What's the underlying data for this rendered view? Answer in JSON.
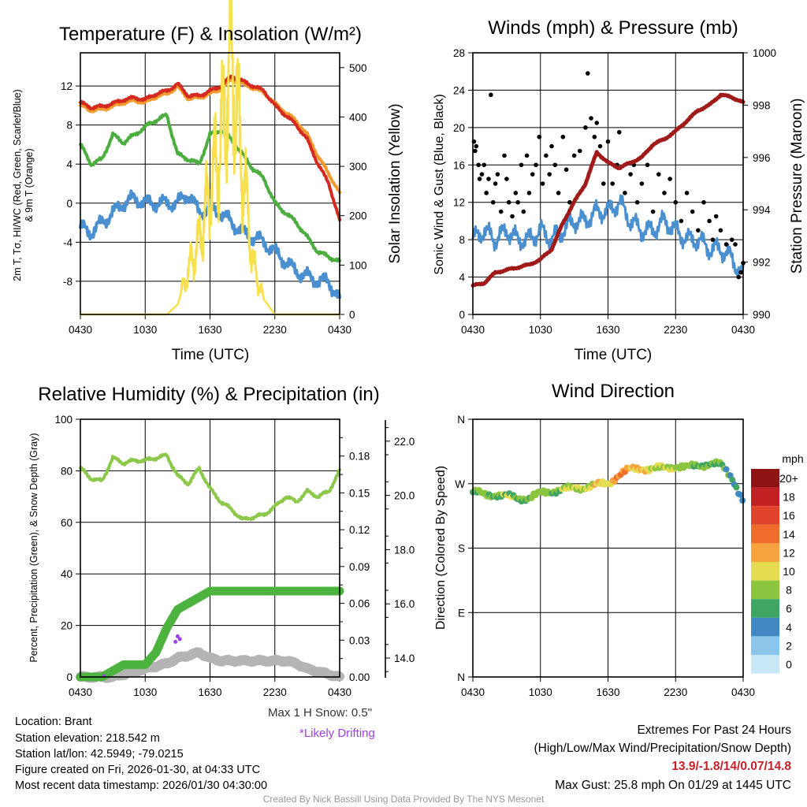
{
  "titles": {
    "temp": "Temperature (F) & Insolation (W/m²)",
    "wind": "Winds (mph) & Pressure (mb)",
    "rh": "Relative Humidity (%) & Precipitation (in)",
    "dir": "Wind Direction"
  },
  "axis_labels": {
    "temp_left_1": "2m T, Tσ, HI/WC (Red, Green, Scarlet/Blue)",
    "temp_left_2": "& 9m T (Orange)",
    "temp_right": "Solar Insolation (Yellow)",
    "temp_x": "Time (UTC)",
    "wind_left": "Sonic Wind & Gust (Blue, Black)",
    "wind_right": "Station Pressure (Maroon)",
    "wind_x": "Time (UTC)",
    "rh_left": "Percent, Precipitation (Green), & Snow Depth (Gray)",
    "dir_left": "Direction (Colored By Speed)"
  },
  "x_ticks": [
    "0430",
    "1030",
    "1630",
    "2230",
    "0430"
  ],
  "colors": {
    "red": "#d42a20",
    "orange": "#f39a2e",
    "green": "#4cae3e",
    "blue": "#4a8fcf",
    "yellow": "#f8e04c",
    "black": "#000000",
    "maroon": "#a01a1a",
    "rh": "#8cc84a",
    "precip": "#4cb43e",
    "snow": "#b4b4b4",
    "drift": "#a040e8"
  },
  "chart_data": [
    {
      "type": "line",
      "title": "Temperature (F) & Insolation (W/m²)",
      "xlabel": "Time (UTC)",
      "x_hours_from_0430": "0..24 hourly",
      "ylim_left": [
        -11.4,
        15.4
      ],
      "yticks_left": [
        12,
        8,
        4,
        0,
        -4,
        -8
      ],
      "ylim_right": [
        0,
        530
      ],
      "yticks_right": [
        500,
        400,
        300,
        200,
        100,
        0
      ],
      "series": [
        {
          "name": "2m T (Red)",
          "color": "red",
          "values": [
            10.3,
            9.8,
            9.9,
            10.2,
            10.6,
            10.8,
            10.6,
            11.2,
            11.5,
            12.2,
            11.0,
            11.0,
            11.5,
            12.0,
            13.0,
            12.5,
            12.0,
            11.5,
            10.0,
            9.0,
            8.0,
            6.5,
            4.0,
            2.0,
            -1.8
          ]
        },
        {
          "name": "9m T (Orange)",
          "color": "orange",
          "values": [
            10.0,
            9.5,
            9.6,
            9.9,
            10.3,
            10.5,
            10.3,
            10.9,
            11.2,
            11.9,
            10.7,
            10.8,
            11.2,
            11.7,
            12.7,
            12.2,
            11.8,
            11.3,
            10.2,
            9.3,
            8.4,
            7.0,
            4.8,
            3.0,
            1.0
          ]
        },
        {
          "name": "Tσ (Green)",
          "color": "green",
          "values": [
            6.0,
            4.0,
            4.5,
            7.0,
            6.2,
            7.0,
            7.8,
            8.5,
            9.0,
            5.0,
            4.5,
            4.0,
            7.0,
            7.5,
            6.5,
            5.0,
            3.5,
            2.5,
            0.0,
            -1.0,
            -2.0,
            -3.5,
            -5.0,
            -5.5,
            -6.0
          ]
        },
        {
          "name": "HI/WC (Blue)",
          "color": "blue",
          "values": [
            -2.5,
            -3.0,
            -2.0,
            -1.0,
            0.0,
            0.5,
            0.0,
            0.0,
            0.0,
            0.0,
            1.0,
            -1.0,
            -0.5,
            -1.0,
            -2.0,
            -3.0,
            -3.5,
            -4.0,
            -5.0,
            -6.0,
            -7.0,
            -7.5,
            -8.0,
            -8.0,
            -10.0
          ]
        },
        {
          "name": "Solar Insolation (Yellow)",
          "color": "yellow",
          "axis": "right",
          "values": [
            0,
            0,
            0,
            0,
            0,
            0,
            0,
            0,
            0,
            20,
            90,
            150,
            250,
            350,
            520,
            300,
            100,
            30,
            0,
            0,
            0,
            0,
            0,
            0,
            0
          ]
        }
      ]
    },
    {
      "type": "line",
      "title": "Winds (mph) & Pressure (mb)",
      "xlabel": "Time (UTC)",
      "ylim_left": [
        0,
        28
      ],
      "yticks_left": [
        28,
        24,
        20,
        16,
        12,
        8,
        4,
        0
      ],
      "ylim_right": [
        990,
        1000
      ],
      "yticks_right": [
        1000,
        998,
        996,
        994,
        992,
        990
      ],
      "sustained": [
        8,
        9,
        8,
        9,
        8,
        8,
        9,
        8,
        9,
        10,
        10,
        11,
        11,
        12,
        10,
        9,
        9,
        10,
        9,
        8,
        8,
        7,
        7,
        6,
        4
      ],
      "pressure": [
        991.1,
        991.2,
        991.6,
        991.7,
        991.8,
        991.9,
        992.1,
        992.5,
        993.5,
        994.3,
        995.0,
        996.2,
        995.8,
        995.6,
        995.8,
        996.0,
        996.5,
        996.7,
        997.0,
        997.4,
        997.8,
        998.0,
        998.4,
        998.3,
        998.1
      ],
      "gusts": [
        [
          0.1,
          18.5
        ],
        [
          0.2,
          17.5
        ],
        [
          0.3,
          18
        ],
        [
          0.5,
          16
        ],
        [
          0.6,
          14.5
        ],
        [
          0.8,
          15
        ],
        [
          1,
          16
        ],
        [
          1.2,
          13
        ],
        [
          1.4,
          14.5
        ],
        [
          1.6,
          23.5
        ],
        [
          1.8,
          12
        ],
        [
          2,
          14
        ],
        [
          2.2,
          15
        ],
        [
          2.5,
          11
        ],
        [
          2.8,
          17
        ],
        [
          3,
          14.5
        ],
        [
          3.2,
          12
        ],
        [
          3.5,
          10.5
        ],
        [
          3.8,
          13
        ],
        [
          4,
          12
        ],
        [
          4.3,
          16
        ],
        [
          4.5,
          11
        ],
        [
          4.8,
          17
        ],
        [
          5,
          13
        ],
        [
          5.3,
          15
        ],
        [
          5.6,
          16
        ],
        [
          5.9,
          19
        ],
        [
          6.2,
          14
        ],
        [
          6.5,
          17
        ],
        [
          6.8,
          15
        ],
        [
          7,
          18
        ],
        [
          7.3,
          16
        ],
        [
          7.6,
          13
        ],
        [
          8,
          19
        ],
        [
          8.3,
          15.5
        ],
        [
          8.6,
          12
        ],
        [
          9,
          17
        ],
        [
          9.5,
          17.5
        ],
        [
          10,
          20
        ],
        [
          10.2,
          25.8
        ],
        [
          10.5,
          21
        ],
        [
          10.8,
          19
        ],
        [
          11,
          20.5
        ],
        [
          11.3,
          18
        ],
        [
          11.6,
          14
        ],
        [
          12,
          18.5
        ],
        [
          12.4,
          14
        ],
        [
          12.8,
          16
        ],
        [
          13,
          19.5
        ],
        [
          13.5,
          13
        ],
        [
          14,
          15
        ],
        [
          14.3,
          16
        ],
        [
          14.6,
          12
        ],
        [
          15,
          14
        ],
        [
          15.5,
          16
        ],
        [
          16,
          11
        ],
        [
          16.5,
          15
        ],
        [
          17,
          13
        ],
        [
          17.5,
          14.5
        ],
        [
          18,
          12
        ],
        [
          18.5,
          10
        ],
        [
          19,
          13
        ],
        [
          19.5,
          11
        ],
        [
          20,
          9
        ],
        [
          20.5,
          12
        ],
        [
          21,
          10
        ],
        [
          21.3,
          8
        ],
        [
          21.6,
          10.5
        ],
        [
          22,
          9
        ],
        [
          22.5,
          7.5
        ],
        [
          23,
          8
        ],
        [
          23.3,
          7.5
        ],
        [
          23.6,
          4
        ],
        [
          23.8,
          4.5
        ],
        [
          24,
          5.5
        ]
      ]
    },
    {
      "type": "line",
      "title": "Relative Humidity (%) & Precipitation (in)",
      "ylim_left": [
        0,
        100
      ],
      "yticks_left": [
        100,
        80,
        60,
        40,
        20,
        0
      ],
      "yticks_precip": [
        "0.18",
        "0.15",
        "0.12",
        "0.09",
        "0.06",
        "0.03",
        "0.00"
      ],
      "yticks_snow": [
        "22.0",
        "20.0",
        "18.0",
        "16.0",
        "14.0"
      ],
      "rh": [
        81,
        77,
        76,
        85,
        83,
        84,
        84,
        85,
        86,
        78,
        75,
        81,
        73,
        68,
        65,
        61,
        62,
        63,
        66,
        70,
        68,
        72,
        70,
        72,
        80
      ],
      "precip": [
        0,
        0,
        0,
        0.005,
        0.01,
        0.01,
        0.01,
        0.02,
        0.04,
        0.055,
        0.06,
        0.065,
        0.07,
        0.07,
        0.07,
        0.07,
        0.07,
        0.07,
        0.07,
        0.07,
        0.07,
        0.07,
        0.07,
        0.07,
        0.07
      ],
      "snow_depth": [
        13.3,
        13.3,
        13.3,
        13.3,
        13.4,
        13.5,
        13.6,
        13.7,
        13.8,
        14.0,
        14.1,
        14.2,
        14.0,
        13.9,
        13.9,
        13.9,
        13.9,
        13.9,
        13.9,
        13.9,
        13.8,
        13.6,
        13.5,
        13.4,
        13.3
      ],
      "drifting": [
        [
          8.8,
          14.6
        ],
        [
          9.0,
          14.8
        ],
        [
          9.2,
          14.7
        ]
      ],
      "max_snow_label": "Max 1 H Snow: 0.5\"",
      "drift_label": "*Likely Drifting"
    },
    {
      "type": "scatter",
      "title": "Wind Direction",
      "ytick_labels": [
        "N",
        "W",
        "S",
        "E",
        "N"
      ],
      "direction_hourly": [
        258,
        255,
        255,
        252,
        250,
        250,
        256,
        260,
        262,
        263,
        266,
        268,
        270,
        283,
        290,
        292,
        290,
        292,
        295,
        292,
        296,
        298,
        296,
        280,
        245
      ],
      "colorbar_title": "mph",
      "colorbar": [
        {
          "label": "20+",
          "color": "#8e1414"
        },
        {
          "label": "18",
          "color": "#c22022"
        },
        {
          "label": "16",
          "color": "#e2432c"
        },
        {
          "label": "14",
          "color": "#f06b2c"
        },
        {
          "label": "12",
          "color": "#f6a340"
        },
        {
          "label": "10",
          "color": "#e6dc52"
        },
        {
          "label": "8",
          "color": "#8bc540"
        },
        {
          "label": "6",
          "color": "#3fa562"
        },
        {
          "label": "4",
          "color": "#3f88c2"
        },
        {
          "label": "2",
          "color": "#8cc6ea"
        },
        {
          "label": "0",
          "color": "#c8e8f8"
        }
      ]
    }
  ],
  "info": {
    "location": "Location: Brant",
    "elevation": "Station elevation: 218.542 m",
    "latlon": "Station lat/lon: 42.5949; -79.0215",
    "created": "Figure created on Fri, 2026-01-30, at 04:33 UTC",
    "recent": "Most recent data timestamp: 2026/01/30 04:30:00"
  },
  "extremes": {
    "title": "Extremes For Past 24 Hours",
    "legend": "(High/Low/Max Wind/Precipitation/Snow Depth)",
    "values": "13.9/-1.8/14/0.07/14.8",
    "gust": "Max Gust: 25.8 mph On 01/29 at 1445 UTC"
  },
  "credit": "Created By Nick Bassill Using Data Provided By The NYS Mesonet"
}
